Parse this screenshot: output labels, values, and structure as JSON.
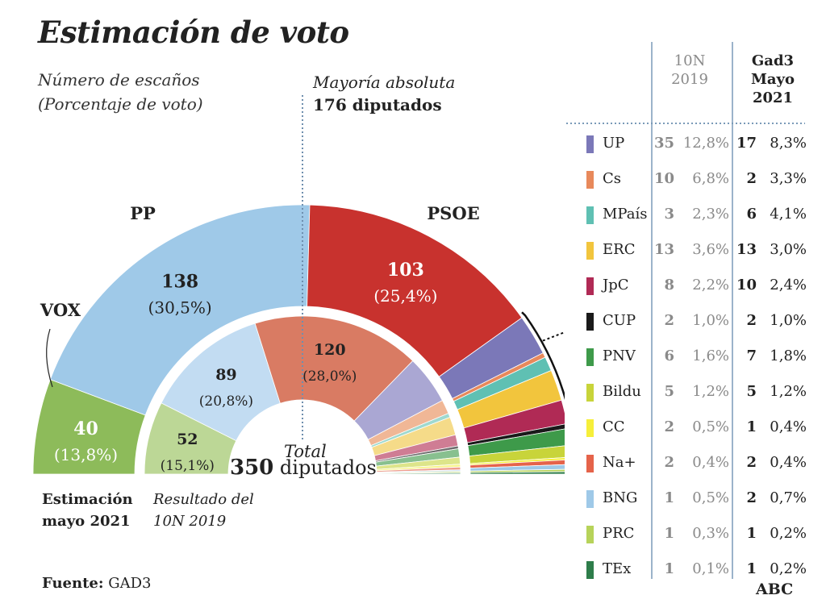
{
  "title": "Estimación de voto",
  "subtitle_1": "Número de escaños",
  "subtitle_2": "(Porcentaje de voto)",
  "majority_1": "Mayoría absoluta",
  "majority_2": "176 diputados",
  "total_label": "Total",
  "total_number": "350",
  "total_unit": "diputados",
  "legend_outer_1": "Estimación",
  "legend_outer_2": "mayo 2021",
  "legend_inner_1": "Resultado del",
  "legend_inner_2": "10N 2019",
  "source_label": "Fuente:",
  "source_value": "GAD3",
  "brand": "ABC",
  "table": {
    "col1_line1": "10N",
    "col1_line2": "2019",
    "col2_line1": "Gad3",
    "col2_line2": "Mayo",
    "col2_line3": "2021"
  },
  "chart_data": {
    "type": "hemicycle",
    "total_seats": 350,
    "majority": 176,
    "outer_ring": {
      "name": "Estimación mayo 2021",
      "major_parties": [
        {
          "party": "VOX",
          "seats": 40,
          "seats_label": "40",
          "pct": "(13,8%)",
          "color": "#8dbb5a"
        },
        {
          "party": "PP",
          "seats": 138,
          "seats_label": "138",
          "pct": "(30,5%)",
          "color": "#9fc9e8"
        },
        {
          "party": "PSOE",
          "seats": 103,
          "seats_label": "103",
          "pct": "(25,4%)",
          "color": "#c8322e"
        }
      ]
    },
    "inner_ring": {
      "name": "Resultado del 10N 2019",
      "major_parties": [
        {
          "party": "VOX",
          "seats": 52,
          "seats_label": "52",
          "pct": "(15,1%)",
          "color": "#bcd796"
        },
        {
          "party": "PP",
          "seats": 89,
          "seats_label": "89",
          "pct": "(20,8%)",
          "color": "#c2dcf2"
        },
        {
          "party": "PSOE",
          "seats": 120,
          "seats_label": "120",
          "pct": "(28,0%)",
          "color": "#d97b63"
        }
      ]
    },
    "small_parties": [
      {
        "party": "UP",
        "seats_2019": 35,
        "pct_2019": "12,8%",
        "seats_2021": 17,
        "pct_2021": "8,3%",
        "color": "#7b78b8",
        "color_light": "#aaa7d3"
      },
      {
        "party": "Cs",
        "seats_2019": 10,
        "pct_2019": "6,8%",
        "seats_2021": 2,
        "pct_2021": "3,3%",
        "color": "#e8895b",
        "color_light": "#f0b796"
      },
      {
        "party": "MPaís",
        "seats_2019": 3,
        "pct_2019": "2,3%",
        "seats_2021": 6,
        "pct_2021": "4,1%",
        "color": "#5fc0b3",
        "color_light": "#9fd9cf"
      },
      {
        "party": "ERC",
        "seats_2019": 13,
        "pct_2019": "3,6%",
        "seats_2021": 13,
        "pct_2021": "3,0%",
        "color": "#f2c53d",
        "color_light": "#f5db89"
      },
      {
        "party": "JpC",
        "seats_2019": 8,
        "pct_2019": "2,2%",
        "seats_2021": 10,
        "pct_2021": "2,4%",
        "color": "#b02a55",
        "color_light": "#cf7d94"
      },
      {
        "party": "CUP",
        "seats_2019": 2,
        "pct_2019": "1,0%",
        "seats_2021": 2,
        "pct_2021": "1,0%",
        "color": "#1a1a1a",
        "color_light": "#6e6e6e"
      },
      {
        "party": "PNV",
        "seats_2019": 6,
        "pct_2019": "1,6%",
        "seats_2021": 7,
        "pct_2021": "1,8%",
        "color": "#3e9a4a",
        "color_light": "#88c08f"
      },
      {
        "party": "Bildu",
        "seats_2019": 5,
        "pct_2019": "1,2%",
        "seats_2021": 5,
        "pct_2021": "1,2%",
        "color": "#c8d43a",
        "color_light": "#dde58a"
      },
      {
        "party": "CC",
        "seats_2019": 2,
        "pct_2019": "0,5%",
        "seats_2021": 1,
        "pct_2021": "0,4%",
        "color": "#f6ef3a",
        "color_light": "#f8f48e"
      },
      {
        "party": "Na+",
        "seats_2019": 2,
        "pct_2019": "0,4%",
        "seats_2021": 2,
        "pct_2021": "0,4%",
        "color": "#e5634a",
        "color_light": "#ee9e8d"
      },
      {
        "party": "BNG",
        "seats_2019": 1,
        "pct_2019": "0,5%",
        "seats_2021": 2,
        "pct_2021": "0,7%",
        "color": "#9fc9e8",
        "color_light": "#c6def1"
      },
      {
        "party": "PRC",
        "seats_2019": 1,
        "pct_2019": "0,3%",
        "seats_2021": 1,
        "pct_2021": "0,2%",
        "color": "#b7d35a",
        "color_light": "#d3e59b"
      },
      {
        "party": "TEx",
        "seats_2019": 1,
        "pct_2019": "0,1%",
        "seats_2021": 1,
        "pct_2021": "0,2%",
        "color": "#2e7d4a",
        "color_light": "#7fb292"
      }
    ]
  }
}
